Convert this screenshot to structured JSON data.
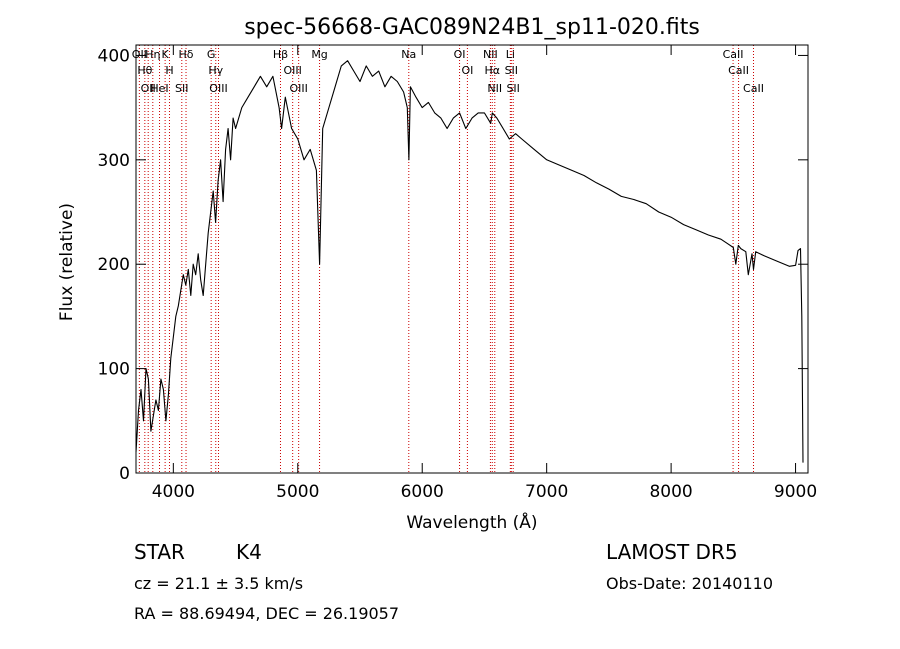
{
  "chart_data": {
    "type": "line",
    "title": "spec-56668-GAC089N24B1_sp11-020.fits",
    "xlabel": "Wavelength (Å)",
    "ylabel": "Flux (relative)",
    "xlim": [
      3700,
      9100
    ],
    "ylim": [
      0,
      410
    ],
    "xticks": [
      4000,
      5000,
      6000,
      7000,
      8000,
      9000
    ],
    "yticks": [
      0,
      100,
      200,
      300,
      400
    ],
    "grid": false,
    "line_color": "#000000",
    "marker_color": "#cc0000",
    "series": [
      {
        "x": [
          3700,
          3720,
          3740,
          3760,
          3780,
          3800,
          3820,
          3840,
          3860,
          3880,
          3900,
          3920,
          3940,
          3960,
          3980,
          4000,
          4020,
          4040,
          4060,
          4080,
          4100,
          4120,
          4140,
          4160,
          4180,
          4200,
          4220,
          4240,
          4260,
          4280,
          4300,
          4320,
          4340,
          4360,
          4380,
          4400,
          4420,
          4440,
          4460,
          4480,
          4500,
          4550,
          4600,
          4650,
          4700,
          4750,
          4800,
          4850,
          4870,
          4900,
          4950,
          5000,
          5050,
          5100,
          5150,
          5175,
          5200,
          5250,
          5300,
          5350,
          5400,
          5450,
          5500,
          5550,
          5600,
          5650,
          5700,
          5750,
          5800,
          5850,
          5880,
          5893,
          5905,
          5950,
          6000,
          6050,
          6100,
          6150,
          6200,
          6250,
          6300,
          6350,
          6400,
          6450,
          6500,
          6550,
          6563,
          6600,
          6650,
          6700,
          6750,
          6800,
          6900,
          7000,
          7100,
          7200,
          7300,
          7400,
          7500,
          7600,
          7700,
          7800,
          7900,
          8000,
          8100,
          8200,
          8300,
          8400,
          8450,
          8500,
          8520,
          8540,
          8560,
          8600,
          8620,
          8650,
          8662,
          8680,
          8750,
          8850,
          8950,
          9000,
          9020,
          9040,
          9050,
          9060
        ],
        "y": [
          20,
          60,
          80,
          50,
          100,
          90,
          40,
          55,
          70,
          60,
          90,
          80,
          50,
          75,
          110,
          130,
          150,
          160,
          175,
          190,
          180,
          195,
          170,
          200,
          190,
          210,
          185,
          170,
          200,
          230,
          250,
          270,
          240,
          280,
          300,
          260,
          310,
          330,
          300,
          340,
          330,
          350,
          360,
          370,
          380,
          370,
          380,
          350,
          330,
          360,
          330,
          320,
          300,
          310,
          290,
          200,
          330,
          350,
          370,
          390,
          395,
          385,
          375,
          390,
          380,
          385,
          370,
          380,
          375,
          365,
          350,
          300,
          370,
          360,
          350,
          355,
          345,
          340,
          330,
          340,
          345,
          330,
          340,
          345,
          345,
          335,
          345,
          340,
          330,
          320,
          325,
          320,
          310,
          300,
          295,
          290,
          285,
          278,
          272,
          265,
          262,
          258,
          250,
          245,
          238,
          233,
          228,
          224,
          220,
          216,
          200,
          218,
          215,
          212,
          190,
          210,
          195,
          212,
          208,
          203,
          198,
          199,
          213,
          215,
          150,
          10
        ]
      }
    ],
    "line_markers": [
      {
        "wave": 3727,
        "label": "OII"
      },
      {
        "wave": 3771,
        "label": "Hθ"
      },
      {
        "wave": 3798,
        "label": "OII"
      },
      {
        "wave": 3835,
        "label": "Hη"
      },
      {
        "wave": 3889,
        "label": "HeI"
      },
      {
        "wave": 3934,
        "label": "K"
      },
      {
        "wave": 3969,
        "label": "H"
      },
      {
        "wave": 4068,
        "label": "SII"
      },
      {
        "wave": 4102,
        "label": "Hδ"
      },
      {
        "wave": 4304,
        "label": "G"
      },
      {
        "wave": 4341,
        "label": "Hγ"
      },
      {
        "wave": 4363,
        "label": "OIII"
      },
      {
        "wave": 4861,
        "label": "Hβ"
      },
      {
        "wave": 4959,
        "label": "OIII"
      },
      {
        "wave": 5007,
        "label": "OIII"
      },
      {
        "wave": 5175,
        "label": "Mg"
      },
      {
        "wave": 5892,
        "label": "Na"
      },
      {
        "wave": 6300,
        "label": "OI"
      },
      {
        "wave": 6363,
        "label": "OI"
      },
      {
        "wave": 6548,
        "label": "NII"
      },
      {
        "wave": 6563,
        "label": "Hα"
      },
      {
        "wave": 6583,
        "label": "NII"
      },
      {
        "wave": 6708,
        "label": "Li"
      },
      {
        "wave": 6716,
        "label": "SII"
      },
      {
        "wave": 6731,
        "label": "SII"
      },
      {
        "wave": 8498,
        "label": "CaII"
      },
      {
        "wave": 8542,
        "label": "CaII"
      },
      {
        "wave": 8662,
        "label": "CaII"
      }
    ]
  },
  "info": {
    "object_class": "STAR",
    "subclass": "K4",
    "survey": "LAMOST DR5",
    "redshift": "cz = 21.1 ± 3.5 km/s",
    "obs_date": "Obs-Date: 20140110",
    "coords": "RA =  88.69494, DEC =  26.19057"
  }
}
